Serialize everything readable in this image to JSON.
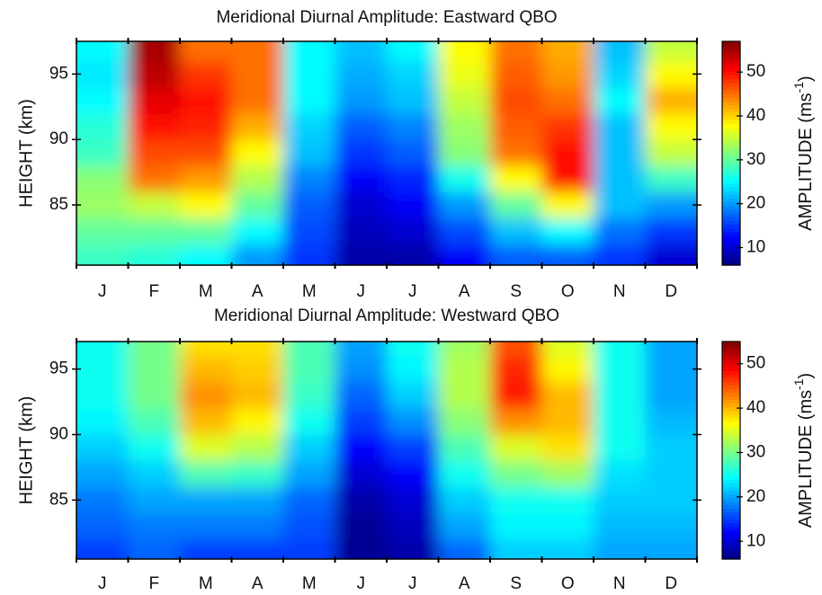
{
  "chart_data": [
    {
      "type": "heatmap",
      "title": "Meridional Diurnal Amplitude: Eastward QBO",
      "categories": [
        "J",
        "F",
        "M",
        "A",
        "M",
        "J",
        "J",
        "A",
        "S",
        "O",
        "N",
        "D"
      ],
      "y_label": "HEIGHT (km)",
      "y": [
        81,
        83,
        85,
        87,
        89,
        91,
        93,
        95,
        97
      ],
      "z": [
        [
          28,
          27,
          25,
          20,
          15,
          8,
          8,
          12,
          17,
          17,
          15,
          10
        ],
        [
          30,
          30,
          30,
          25,
          16,
          9,
          10,
          16,
          22,
          25,
          18,
          15
        ],
        [
          33,
          35,
          38,
          30,
          17,
          10,
          12,
          20,
          30,
          38,
          22,
          20
        ],
        [
          32,
          45,
          43,
          34,
          19,
          12,
          14,
          26,
          38,
          50,
          22,
          28
        ],
        [
          28,
          47,
          47,
          38,
          22,
          15,
          17,
          32,
          45,
          50,
          22,
          35
        ],
        [
          27,
          50,
          49,
          42,
          23,
          17,
          19,
          33,
          46,
          48,
          22,
          38
        ],
        [
          25,
          52,
          50,
          45,
          25,
          20,
          22,
          35,
          47,
          45,
          25,
          42
        ],
        [
          24,
          54,
          48,
          45,
          25,
          21,
          23,
          37,
          46,
          43,
          23,
          38
        ],
        [
          25,
          55,
          45,
          45,
          25,
          22,
          25,
          38,
          45,
          42,
          22,
          35
        ]
      ],
      "ylim": [
        80.4,
        97.5
      ],
      "yticks": [
        85,
        90,
        95
      ],
      "colormap": "jet",
      "clim": [
        6,
        57
      ],
      "cticks": [
        10,
        20,
        30,
        40,
        50
      ],
      "colorbar_label": "AMPLITUDE (ms",
      "colorbar_label_sup": "-1",
      "colorbar_label_end": ")"
    },
    {
      "type": "heatmap",
      "title": "Meridional Diurnal Amplitude: Westward QBO",
      "categories": [
        "J",
        "F",
        "M",
        "A",
        "M",
        "J",
        "J",
        "A",
        "S",
        "O",
        "N",
        "D"
      ],
      "y_label": "HEIGHT (km)",
      "y": [
        81,
        83,
        85,
        87,
        89,
        91,
        93,
        95,
        97
      ],
      "z": [
        [
          15,
          17,
          15,
          15,
          15,
          7,
          8,
          17,
          22,
          22,
          20,
          20
        ],
        [
          17,
          18,
          18,
          18,
          16,
          7,
          9,
          20,
          24,
          24,
          21,
          21
        ],
        [
          18,
          20,
          20,
          20,
          17,
          8,
          10,
          22,
          25,
          25,
          22,
          22
        ],
        [
          20,
          22,
          28,
          27,
          20,
          10,
          12,
          25,
          30,
          32,
          23,
          22
        ],
        [
          22,
          25,
          35,
          33,
          22,
          12,
          15,
          28,
          35,
          38,
          25,
          22
        ],
        [
          24,
          28,
          40,
          37,
          25,
          15,
          19,
          31,
          42,
          40,
          25,
          21
        ],
        [
          25,
          30,
          42,
          40,
          27,
          17,
          22,
          33,
          48,
          40,
          25,
          20
        ],
        [
          25,
          30,
          40,
          39,
          28,
          19,
          24,
          33,
          47,
          37,
          25,
          20
        ],
        [
          25,
          30,
          38,
          38,
          28,
          20,
          25,
          32,
          45,
          35,
          25,
          20
        ]
      ],
      "ylim": [
        80.5,
        97.1
      ],
      "yticks": [
        85,
        90,
        95
      ],
      "colormap": "jet",
      "clim": [
        6,
        55
      ],
      "cticks": [
        10,
        20,
        30,
        40,
        50
      ],
      "colorbar_label": "AMPLITUDE (ms",
      "colorbar_label_sup": "-1",
      "colorbar_label_end": ")"
    }
  ]
}
